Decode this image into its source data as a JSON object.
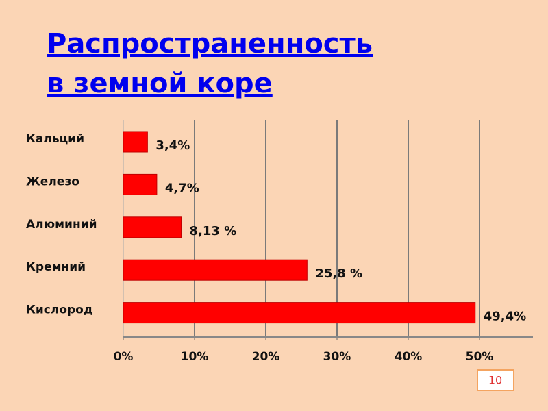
{
  "title": [
    "Распространенность",
    "в земной коре"
  ],
  "page_number": "10",
  "chart_data": {
    "type": "hbar",
    "categories": [
      "Кальций",
      "Железо",
      "Алюминий",
      "Кремний",
      "Кислород"
    ],
    "values": [
      3.4,
      4.7,
      8.13,
      25.8,
      49.4
    ],
    "value_labels": [
      "3,4%",
      "4,7%",
      "8,13 %",
      "25,8 %",
      "49,4%"
    ],
    "color": "#ff0000",
    "xlim": [
      0,
      57.5
    ],
    "xticks": [
      {
        "value": 0,
        "label": "0%"
      },
      {
        "value": 10,
        "label": "10%"
      },
      {
        "value": 20,
        "label": "20%"
      },
      {
        "value": 30,
        "label": "30%"
      },
      {
        "value": 40,
        "label": "40%"
      },
      {
        "value": 50,
        "label": "50%"
      }
    ],
    "grid": true
  }
}
